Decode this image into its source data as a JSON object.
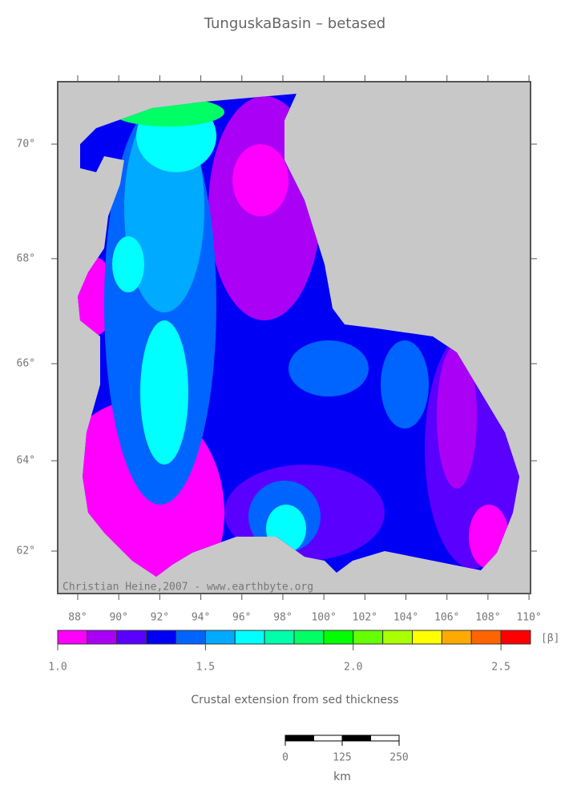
{
  "title": "TunguskaBasin – betased",
  "map": {
    "credit": "Christian Heine,2007 - www.earthbyte.org",
    "lon_ticks": [
      {
        "value": 88,
        "label": "88°"
      },
      {
        "value": 90,
        "label": "90°"
      },
      {
        "value": 92,
        "label": "92°"
      },
      {
        "value": 94,
        "label": "94°"
      },
      {
        "value": 96,
        "label": "96°"
      },
      {
        "value": 98,
        "label": "98°"
      },
      {
        "value": 100,
        "label": "100°"
      },
      {
        "value": 102,
        "label": "102°"
      },
      {
        "value": 104,
        "label": "104°"
      },
      {
        "value": 106,
        "label": "106°"
      },
      {
        "value": 108,
        "label": "108°"
      },
      {
        "value": 110,
        "label": "110°"
      }
    ],
    "lat_ticks": [
      {
        "value": 70,
        "label": "70°"
      },
      {
        "value": 68,
        "label": "68°"
      },
      {
        "value": 66,
        "label": "66°"
      },
      {
        "value": 64,
        "label": "64°"
      },
      {
        "value": 62,
        "label": "62°"
      }
    ]
  },
  "colorbar": {
    "range": [
      1,
      2.6
    ],
    "unit": "[β]",
    "colors": [
      "#ff00ff",
      "#aa00f5",
      "#5a00ff",
      "#0000f5",
      "#0064ff",
      "#00aaff",
      "#00ffff",
      "#00ffaa",
      "#00ff64",
      "#00ff00",
      "#64ff00",
      "#aaff00",
      "#ffff00",
      "#ffaa00",
      "#ff6400",
      "#ff0000"
    ],
    "ticks": [
      {
        "value": 1,
        "label": "1.0"
      },
      {
        "value": 1.5,
        "label": "1.5"
      },
      {
        "value": 2,
        "label": "2.0"
      },
      {
        "value": 2.5,
        "label": "2.5"
      }
    ],
    "caption": "Crustal extension from sed thickness"
  },
  "scalebar": {
    "ticks": [
      0,
      125,
      250
    ],
    "unit": "km"
  }
}
